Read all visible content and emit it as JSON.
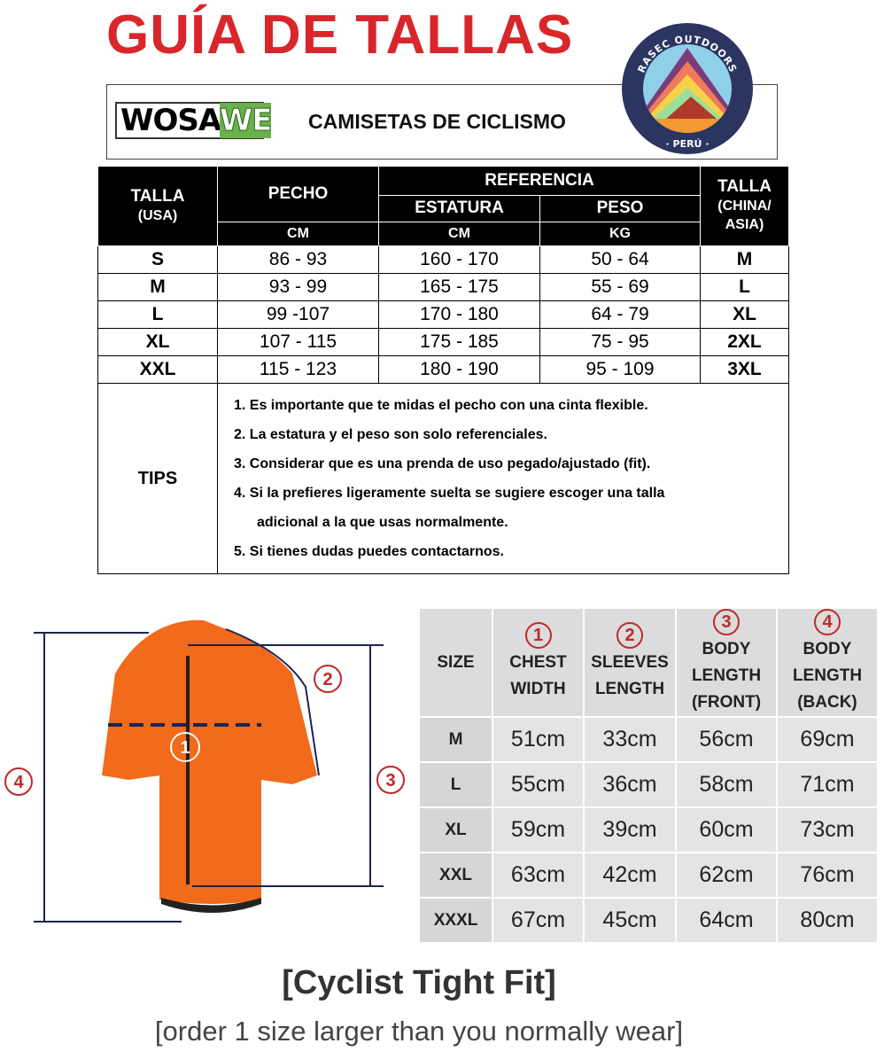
{
  "title": "GUÍA DE TALLAS",
  "brand": {
    "logo_text_a": "WOSA",
    "logo_text_b": "WE",
    "subtitle": "CAMISETAS DE CICLISMO",
    "badge_top": "RASEC OUTDOORS",
    "badge_bottom": "· PERÚ ·"
  },
  "size_table": {
    "headers": {
      "talla_usa": "TALLA",
      "talla_usa_sub": "(USA)",
      "pecho": "PECHO",
      "referencia": "REFERENCIA",
      "estatura": "ESTATURA",
      "peso": "PESO",
      "talla_china": "TALLA",
      "talla_china_sub": "(CHINA/",
      "talla_china_sub2": "ASIA)",
      "unit_pecho": "CM",
      "unit_estatura": "CM",
      "unit_peso": "KG"
    },
    "rows": [
      {
        "usa": "S",
        "pecho": "86 - 93",
        "estatura": "160 - 170",
        "peso": "50 - 64",
        "china": "M"
      },
      {
        "usa": "M",
        "pecho": "93 - 99",
        "estatura": "165 - 175",
        "peso": "55 - 69",
        "china": "L"
      },
      {
        "usa": "L",
        "pecho": "99 -107",
        "estatura": "170 - 180",
        "peso": "64 - 79",
        "china": "XL"
      },
      {
        "usa": "XL",
        "pecho": "107 - 115",
        "estatura": "175 - 185",
        "peso": "75 - 95",
        "china": "2XL"
      },
      {
        "usa": "XXL",
        "pecho": "115 - 123",
        "estatura": "180 - 190",
        "peso": "95 - 109",
        "china": "3XL"
      }
    ],
    "tips_label": "TIPS",
    "tips": [
      "1. Es importante que te midas el pecho con una cinta flexible.",
      "2. La estatura y el peso son solo referenciales.",
      "3. Considerar que es una prenda de uso pegado/ajustado (fit).",
      "4. Si la prefieres ligeramente suelta se sugiere escoger una talla",
      "adicional a la que usas normalmente.",
      "5. Si tienes dudas puedes contactarnos."
    ]
  },
  "diagram": {
    "markers": [
      "1",
      "2",
      "3",
      "4"
    ],
    "jersey_color": "#f26a1b",
    "accent": "#c0282a"
  },
  "measure_table": {
    "headers": [
      {
        "num": "",
        "label1": "SIZE",
        "label2": "",
        "label3": ""
      },
      {
        "num": "1",
        "label1": "CHEST",
        "label2": "WIDTH",
        "label3": ""
      },
      {
        "num": "2",
        "label1": "SLEEVES",
        "label2": "LENGTH",
        "label3": ""
      },
      {
        "num": "3",
        "label1": "BODY",
        "label2": "LENGTH",
        "label3": "(FRONT)"
      },
      {
        "num": "4",
        "label1": "BODY",
        "label2": "LENGTH",
        "label3": "(BACK)"
      }
    ],
    "rows": [
      [
        "M",
        "51cm",
        "33cm",
        "56cm",
        "69cm"
      ],
      [
        "L",
        "55cm",
        "36cm",
        "58cm",
        "71cm"
      ],
      [
        "XL",
        "59cm",
        "39cm",
        "60cm",
        "73cm"
      ],
      [
        "XXL",
        "63cm",
        "42cm",
        "62cm",
        "76cm"
      ],
      [
        "XXXL",
        "67cm",
        "45cm",
        "64cm",
        "80cm"
      ]
    ]
  },
  "fit_title": "[Cyclist Tight Fit]",
  "fit_note": "[order 1 size larger than you normally wear]"
}
